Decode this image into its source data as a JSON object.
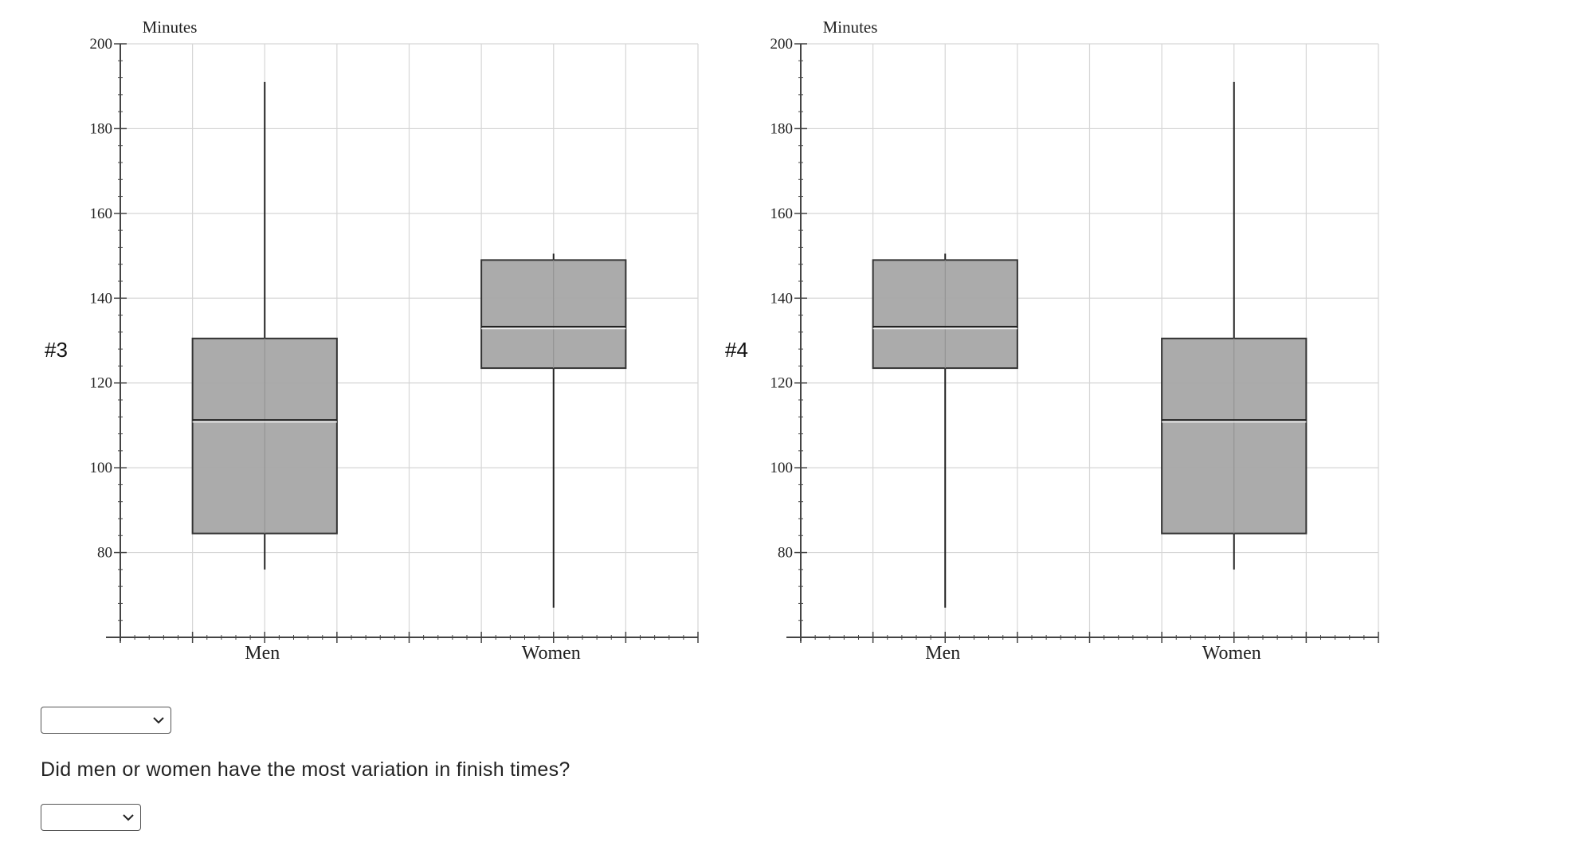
{
  "plots": [
    {
      "label": "#3",
      "chart_data": {
        "type": "box",
        "ylabel": "Minutes",
        "ylim": [
          60,
          200
        ],
        "yticks": [
          80,
          100,
          120,
          140,
          160,
          180,
          200
        ],
        "categories": [
          "Men",
          "Women"
        ],
        "grid": true,
        "boxes": [
          {
            "category": "Men",
            "min": 76,
            "q1": 84.5,
            "median": 111,
            "q3": 130.5,
            "max": 191
          },
          {
            "category": "Women",
            "min": 67,
            "q1": 123.5,
            "median": 133,
            "q3": 149,
            "max": 150.5
          }
        ]
      }
    },
    {
      "label": "#4",
      "chart_data": {
        "type": "box",
        "ylabel": "Minutes",
        "ylim": [
          60,
          200
        ],
        "yticks": [
          80,
          100,
          120,
          140,
          160,
          180,
          200
        ],
        "categories": [
          "Men",
          "Women"
        ],
        "grid": true,
        "boxes": [
          {
            "category": "Men",
            "min": 67,
            "q1": 123.5,
            "median": 133,
            "q3": 149,
            "max": 150.5
          },
          {
            "category": "Women",
            "min": 76,
            "q1": 84.5,
            "median": 111,
            "q3": 130.5,
            "max": 191
          }
        ]
      }
    }
  ],
  "form": {
    "select1_value": "",
    "question": "Did men or women have the most variation in finish times?",
    "select2_value": ""
  },
  "colors": {
    "box_fill": "#a6a6a6",
    "grid": "#d6d6d6",
    "axis": "#444444"
  }
}
